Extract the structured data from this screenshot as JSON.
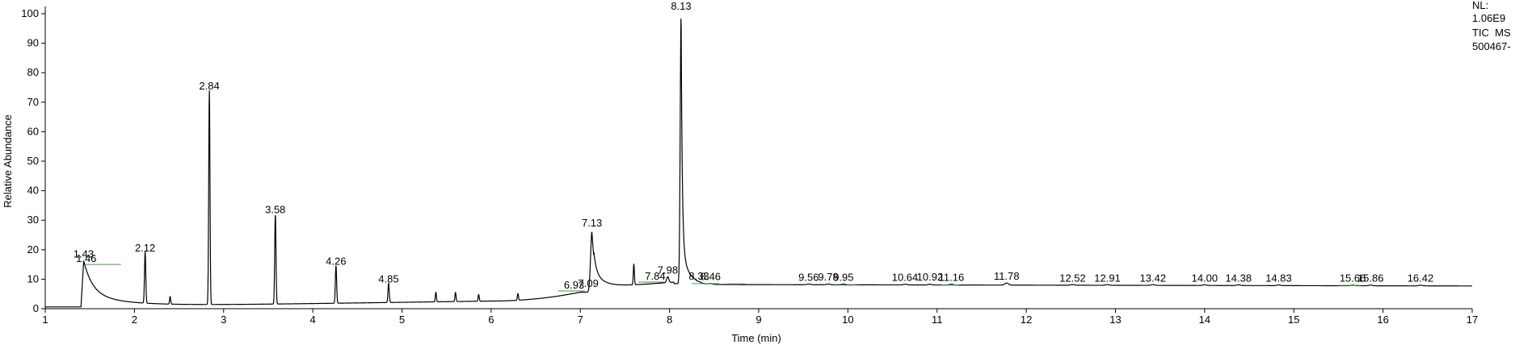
{
  "chart_data": {
    "type": "line",
    "xlabel": "Time (min)",
    "ylabel": "Relative Abundance",
    "xlim": [
      1,
      17
    ],
    "ylim": [
      0,
      100
    ],
    "x_ticks": [
      1,
      2,
      3,
      4,
      5,
      6,
      7,
      8,
      9,
      10,
      11,
      12,
      13,
      14,
      15,
      16,
      17
    ],
    "y_ticks": [
      0,
      10,
      20,
      30,
      40,
      50,
      60,
      70,
      80,
      90,
      100
    ],
    "grid": false,
    "info_text": [
      "NL:",
      "1.06E9",
      "TIC  MS",
      "500467-"
    ],
    "colors": {
      "trace": "#000000",
      "baseline_marks": "#3a9a3a"
    },
    "peaks": [
      {
        "label": "1.43",
        "time": 1.43,
        "height": 16
      },
      {
        "label": "1.46",
        "time": 1.46,
        "height": 14.5
      },
      {
        "label": "2.12",
        "time": 2.12,
        "height": 18
      },
      {
        "label": "2.84",
        "time": 2.84,
        "height": 73
      },
      {
        "label": "3.58",
        "time": 3.58,
        "height": 31
      },
      {
        "label": "4.26",
        "time": 4.26,
        "height": 13.5
      },
      {
        "label": "4.85",
        "time": 4.85,
        "height": 7.5
      },
      {
        "label": "6.93",
        "time": 6.93,
        "height": 5.5
      },
      {
        "label": "7.09",
        "time": 7.09,
        "height": 6.0
      },
      {
        "label": "7.13",
        "time": 7.13,
        "height": 26.5
      },
      {
        "label": "7.84",
        "time": 7.84,
        "height": 8.5
      },
      {
        "label": "7.98",
        "time": 7.98,
        "height": 10.5
      },
      {
        "label": "8.13",
        "time": 8.13,
        "height": 100
      },
      {
        "label": "8.33",
        "time": 8.33,
        "height": 8.5
      },
      {
        "label": "8.46",
        "time": 8.46,
        "height": 8.3
      },
      {
        "label": "9.56",
        "time": 9.56,
        "height": 8.0
      },
      {
        "label": "9.78",
        "time": 9.78,
        "height": 8.2
      },
      {
        "label": "9.95",
        "time": 9.95,
        "height": 8.0
      },
      {
        "label": "10.64",
        "time": 10.64,
        "height": 8.0
      },
      {
        "label": "10.92",
        "time": 10.92,
        "height": 8.2
      },
      {
        "label": "11.16",
        "time": 11.16,
        "height": 8.0
      },
      {
        "label": "11.78",
        "time": 11.78,
        "height": 8.5
      },
      {
        "label": "12.52",
        "time": 12.52,
        "height": 7.8
      },
      {
        "label": "12.91",
        "time": 12.91,
        "height": 7.8
      },
      {
        "label": "13.42",
        "time": 13.42,
        "height": 7.8
      },
      {
        "label": "14.00",
        "time": 14.0,
        "height": 7.8
      },
      {
        "label": "14.38",
        "time": 14.38,
        "height": 7.8
      },
      {
        "label": "14.83",
        "time": 14.83,
        "height": 7.8
      },
      {
        "label": "15.66",
        "time": 15.66,
        "height": 7.8
      },
      {
        "label": "15.86",
        "time": 15.86,
        "height": 7.8
      },
      {
        "label": "16.42",
        "time": 16.42,
        "height": 7.8
      }
    ],
    "minor_peaks": [
      {
        "time": 2.4,
        "height": 3.8
      },
      {
        "time": 5.38,
        "height": 4.5
      },
      {
        "time": 5.6,
        "height": 4.3
      },
      {
        "time": 5.86,
        "height": 3.5
      },
      {
        "time": 6.3,
        "height": 3.5
      },
      {
        "time": 7.6,
        "height": 8.2
      }
    ],
    "baseline_marks": [
      {
        "start": 1.45,
        "end": 1.85,
        "height": 15
      },
      {
        "start": 6.75,
        "end": 7.05,
        "height": 6
      },
      {
        "start": 7.65,
        "end": 7.95,
        "height": 9
      },
      {
        "start": 8.25,
        "end": 8.55,
        "height": 8.5
      },
      {
        "start": 8.65,
        "end": 8.85,
        "height": 8.4
      },
      {
        "start": 9.9,
        "end": 10.1,
        "height": 8.0
      },
      {
        "start": 11.05,
        "end": 11.25,
        "height": 8.0
      },
      {
        "start": 15.5,
        "end": 15.75,
        "height": 7.9
      }
    ]
  }
}
